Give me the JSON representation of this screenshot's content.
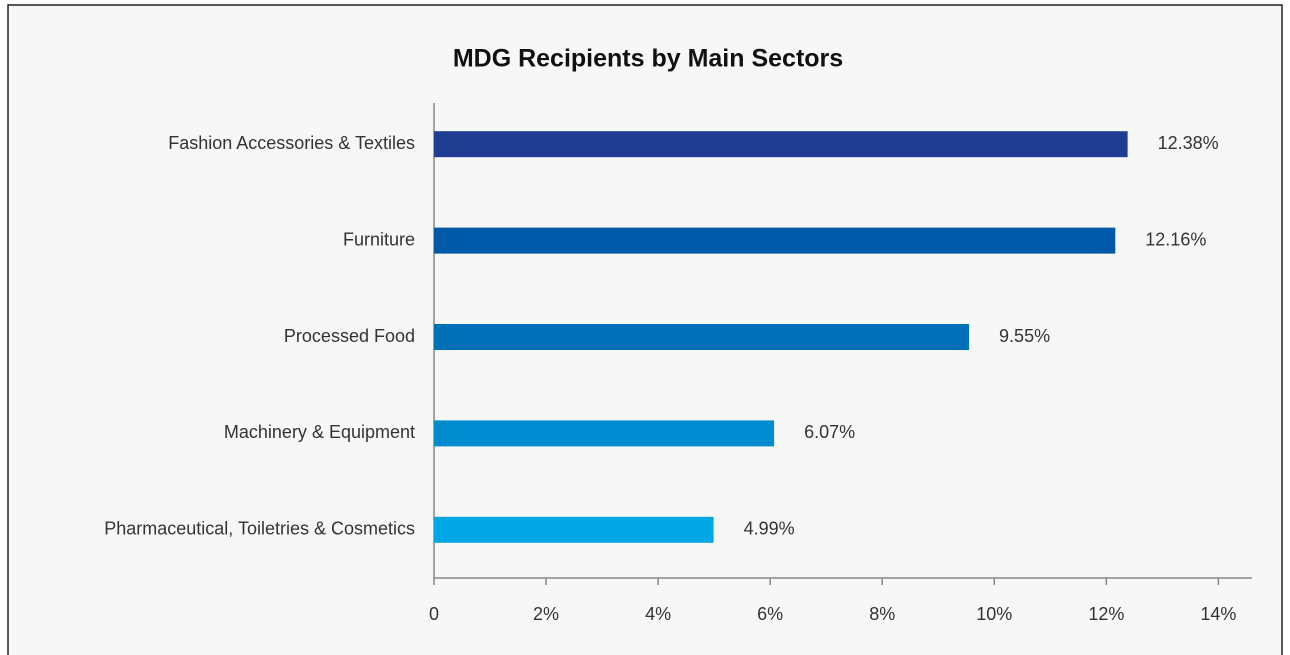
{
  "chart_data": {
    "type": "bar",
    "orientation": "horizontal",
    "title": "MDG Recipients by Main Sectors",
    "categories": [
      "Fashion Accessories & Textiles",
      "Furniture",
      "Processed Food",
      "Machinery & Equipment",
      "Pharmaceutical, Toiletries & Cosmetics"
    ],
    "values": [
      12.38,
      12.16,
      9.55,
      6.07,
      4.99
    ],
    "value_labels": [
      "12.38%",
      "12.16%",
      "9.55%",
      "6.07%",
      "4.99%"
    ],
    "colors": [
      "#1f3d93",
      "#0059a8",
      "#0071b9",
      "#008bcf",
      "#00a7e4"
    ],
    "xlim": [
      0,
      14.6
    ],
    "xticks": [
      0,
      {
        "value": 2,
        "label": "2%"
      },
      {
        "value": 4,
        "label": "4%"
      },
      {
        "value": 6,
        "label": "6%"
      },
      {
        "value": 8,
        "label": "8%"
      },
      {
        "value": 10,
        "label": "10%"
      },
      {
        "value": 12,
        "label": "12%"
      },
      {
        "value": 14,
        "label": "14%"
      }
    ],
    "grid": false
  }
}
